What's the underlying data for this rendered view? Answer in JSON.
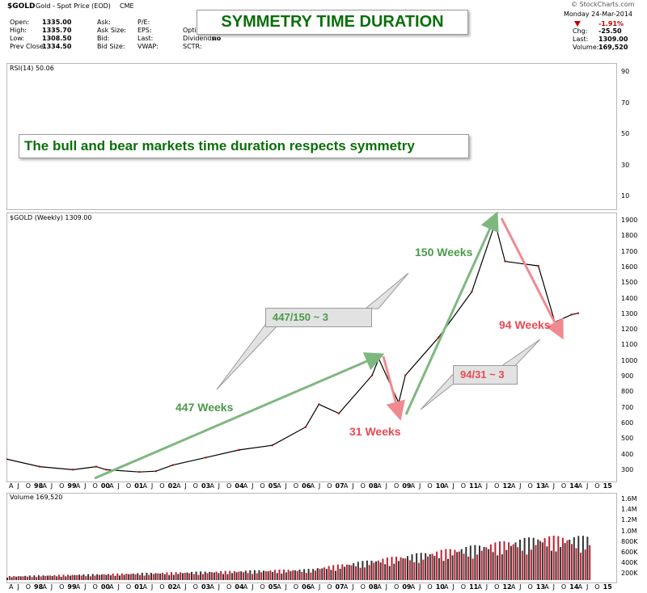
{
  "header": {
    "symbol": "$GOLD",
    "name": "Gold - Spot Price (EOD)",
    "exchange": "CME",
    "watermark": "© StockCharts.com",
    "date": "Monday  24-Mar-2014",
    "quote_left": [
      {
        "label": "Open:",
        "value": "1335.00"
      },
      {
        "label": "High:",
        "value": "1335.70"
      },
      {
        "label": "Low:",
        "value": "1308.50"
      },
      {
        "label": "Prev Close:",
        "value": "1334.50"
      }
    ],
    "quote_mid": [
      {
        "label": "Ask:",
        "value": ""
      },
      {
        "label": "Ask Size:",
        "value": ""
      },
      {
        "label": "Bid:",
        "value": ""
      },
      {
        "label": "Bid Size:",
        "value": ""
      }
    ],
    "quote_mid2": [
      {
        "label": "P/E:",
        "value": ""
      },
      {
        "label": "EPS:",
        "value": ""
      },
      {
        "label": "Last:",
        "value": ""
      },
      {
        "label": "VWAP:",
        "value": ""
      }
    ],
    "quote_mid3": [
      {
        "label": "",
        "value": ""
      },
      {
        "label": "Option",
        "value": ""
      },
      {
        "label": "Dividends:",
        "value": "no"
      },
      {
        "label": "SCTR:",
        "value": ""
      }
    ],
    "change_pct": "-1.91%",
    "quote_right": [
      {
        "label": "Chg:",
        "value": "-25.50"
      },
      {
        "label": "Last:",
        "value": "1309.00"
      },
      {
        "label": "Volume:",
        "value": "169,520"
      }
    ],
    "down_color": "#c00000"
  },
  "title_box": "SYMMETRY TIME DURATION",
  "subtitle_box": "The bull and bear markets time duration respects symmetry",
  "rsi": {
    "label": "RSI(14) 50.06",
    "ticks": [
      "90",
      "70",
      "50",
      "30",
      "10"
    ]
  },
  "price": {
    "label": "$GOLD (Weekly) 1309.00",
    "ticks": [
      "1900",
      "1800",
      "1700",
      "1600",
      "1500",
      "1400",
      "1300",
      "1200",
      "1100",
      "1000",
      "900",
      "800",
      "700",
      "600",
      "500",
      "400",
      "300"
    ]
  },
  "volume": {
    "label": "Volume 169,520",
    "ticks": [
      "1.6M",
      "1.4M",
      "1.2M",
      "1.0M",
      "800K",
      "600K",
      "400K",
      "200K"
    ]
  },
  "xaxis": {
    "labels": [
      "A",
      "J",
      "O",
      "98",
      "A",
      "J",
      "O",
      "99",
      "A",
      "J",
      "O",
      "00",
      "A",
      "J",
      "O",
      "01",
      "A",
      "J",
      "O",
      "02",
      "A",
      "J",
      "O",
      "03",
      "A",
      "J",
      "O",
      "04",
      "A",
      "J",
      "O",
      "05",
      "A",
      "J",
      "O",
      "06",
      "A",
      "J",
      "O",
      "07",
      "A",
      "J",
      "O",
      "08",
      "A",
      "J",
      "O",
      "09",
      "A",
      "J",
      "O",
      "10",
      "A",
      "J",
      "O",
      "11",
      "A",
      "J",
      "O",
      "12",
      "A",
      "J",
      "O",
      "13",
      "A",
      "J",
      "O",
      "14",
      "A",
      "J",
      "O",
      "15"
    ]
  },
  "annotations": {
    "weeks_447": "447 Weeks",
    "weeks_150": "150 Weeks",
    "weeks_31": "31 Weeks",
    "weeks_94": "94 Weeks",
    "ratio_447_150": "447/150 ~ 3",
    "ratio_94_31": "94/31 ~ 3",
    "green": "#4a9a4a",
    "red": "#e84a55"
  },
  "chart_data": {
    "type": "line",
    "title": "$GOLD (Weekly) 1309.00",
    "ylim": [
      250,
      1950
    ],
    "x": [
      "1997",
      "1998",
      "1999",
      "1999.7",
      "2000",
      "2001",
      "2001.5",
      "2002",
      "2003",
      "2004",
      "2005",
      "2006",
      "2006.4",
      "2007",
      "2008",
      "2008.2",
      "2008.8",
      "2009",
      "2010",
      "2011",
      "2011.7",
      "2012",
      "2013",
      "2013.5",
      "2014",
      "2014.2"
    ],
    "series": [
      {
        "values": [
          350,
          300,
          280,
          300,
          280,
          265,
          270,
          310,
          360,
          410,
          440,
          560,
          710,
          650,
          900,
          1010,
          720,
          900,
          1150,
          1450,
          1900,
          1650,
          1620,
          1250,
          1300,
          1309
        ]
      }
    ]
  }
}
